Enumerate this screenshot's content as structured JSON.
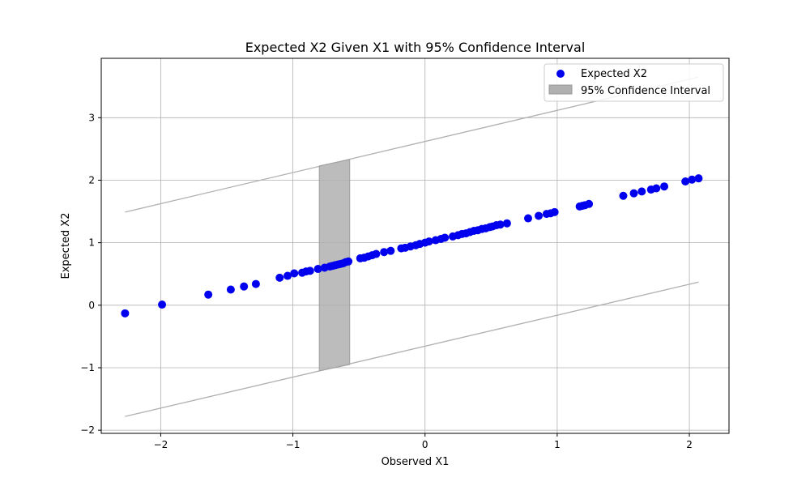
{
  "chart_data": {
    "type": "scatter",
    "title": "Expected X2 Given X1 with 95% Confidence Interval",
    "xlabel": "Observed X1",
    "ylabel": "Expected X2",
    "xlim": [
      -2.45,
      2.3
    ],
    "ylim": [
      -2.05,
      3.95
    ],
    "xticks": [
      -2,
      -1,
      0,
      1,
      2
    ],
    "yticks": [
      -2,
      -1,
      0,
      1,
      2,
      3
    ],
    "xtick_labels": [
      "−2",
      "−1",
      "0",
      "1",
      "2"
    ],
    "ytick_labels": [
      "−2",
      "−1",
      "0",
      "1",
      "2",
      "3"
    ],
    "grid": true,
    "legend_position": "top-right",
    "colors": {
      "points": "#0000ee",
      "band": "#b0b0b0",
      "grid": "#b0b0b0"
    },
    "series": [
      {
        "name": "Expected X2",
        "kind": "scatter",
        "x": [
          -2.27,
          -1.99,
          -1.64,
          -1.47,
          -1.37,
          -1.28,
          -1.1,
          -1.04,
          -0.99,
          -0.93,
          -0.9,
          -0.87,
          -0.81,
          -0.76,
          -0.72,
          -0.7,
          -0.68,
          -0.66,
          -0.64,
          -0.62,
          -0.6,
          -0.58,
          -0.49,
          -0.46,
          -0.43,
          -0.4,
          -0.37,
          -0.31,
          -0.26,
          -0.18,
          -0.15,
          -0.11,
          -0.07,
          -0.04,
          0.0,
          0.03,
          0.08,
          0.12,
          0.15,
          0.21,
          0.25,
          0.28,
          0.31,
          0.34,
          0.37,
          0.4,
          0.43,
          0.46,
          0.49,
          0.51,
          0.54,
          0.57,
          0.62,
          0.78,
          0.86,
          0.92,
          0.95,
          0.98,
          1.17,
          1.19,
          1.21,
          1.24,
          1.5,
          1.58,
          1.64,
          1.71,
          1.75,
          1.81,
          1.97,
          2.02,
          2.07
        ],
        "y": [
          -0.13,
          0.01,
          0.17,
          0.25,
          0.3,
          0.34,
          0.44,
          0.47,
          0.51,
          0.52,
          0.54,
          0.55,
          0.58,
          0.6,
          0.62,
          0.63,
          0.64,
          0.65,
          0.66,
          0.67,
          0.69,
          0.7,
          0.75,
          0.76,
          0.78,
          0.8,
          0.82,
          0.85,
          0.87,
          0.91,
          0.92,
          0.94,
          0.96,
          0.98,
          1.0,
          1.02,
          1.04,
          1.06,
          1.08,
          1.1,
          1.12,
          1.14,
          1.15,
          1.17,
          1.19,
          1.2,
          1.22,
          1.23,
          1.25,
          1.26,
          1.28,
          1.29,
          1.31,
          1.39,
          1.43,
          1.46,
          1.47,
          1.49,
          1.58,
          1.59,
          1.6,
          1.62,
          1.75,
          1.79,
          1.82,
          1.85,
          1.87,
          1.9,
          1.98,
          2.01,
          2.03
        ]
      },
      {
        "name": "95% Confidence Interval",
        "kind": "band",
        "x": [
          -0.8,
          -0.57
        ],
        "lower": [
          -1.05,
          -0.95
        ],
        "upper": [
          2.23,
          2.33
        ]
      }
    ],
    "bound_lines": [
      {
        "x": [
          -2.27,
          2.07
        ],
        "y": [
          1.49,
          3.65
        ]
      },
      {
        "x": [
          -2.27,
          2.07
        ],
        "y": [
          -1.78,
          0.37
        ]
      }
    ]
  }
}
